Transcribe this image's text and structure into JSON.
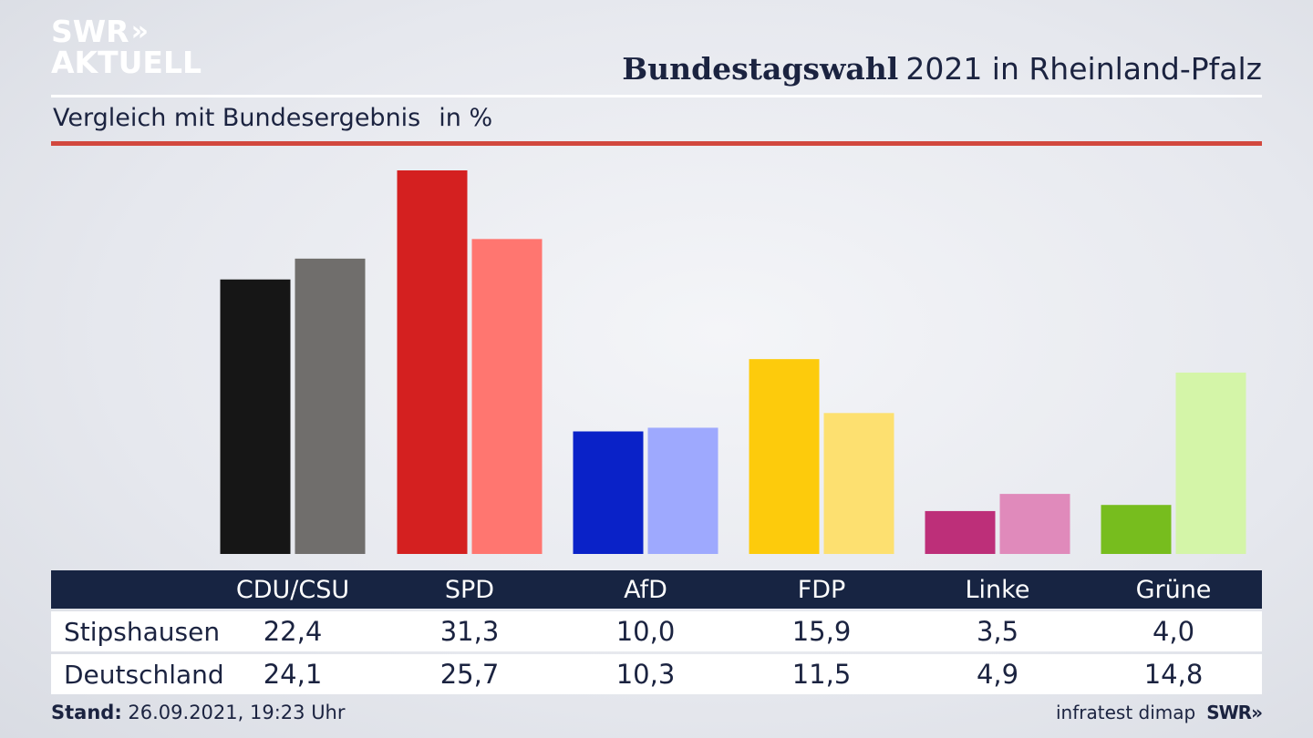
{
  "logo": {
    "line1": "SWR",
    "chevrons": "»",
    "line2": "AKTUELL"
  },
  "header": {
    "title_bold": "Bundestagswahl",
    "title_rest": "2021 in Rheinland-Pfalz"
  },
  "subtitle": {
    "text": "Vergleich mit Bundesergebnis",
    "unit": "in %"
  },
  "chart_data": {
    "type": "bar",
    "categories": [
      "CDU/CSU",
      "SPD",
      "AfD",
      "FDP",
      "Linke",
      "Grüne"
    ],
    "series": [
      {
        "name": "Stipshausen",
        "values": [
          22.4,
          31.3,
          10.0,
          15.9,
          3.5,
          4.0
        ],
        "colors": [
          "#161616",
          "#d42020",
          "#0a22c8",
          "#fdcb0c",
          "#bd2f79",
          "#77bd1e"
        ]
      },
      {
        "name": "Deutschland",
        "values": [
          24.1,
          25.7,
          10.3,
          11.5,
          4.9,
          14.8
        ],
        "colors": [
          "#706e6c",
          "#ff7670",
          "#9ea9fe",
          "#fde070",
          "#e08abb",
          "#d4f5a8"
        ]
      }
    ],
    "ylim": [
      0,
      32.5
    ],
    "grid": false
  },
  "table": {
    "headers": [
      "CDU/CSU",
      "SPD",
      "AfD",
      "FDP",
      "Linke",
      "Grüne"
    ],
    "rows": [
      {
        "label": "Stipshausen",
        "values": [
          "22,4",
          "31,3",
          "10,0",
          "15,9",
          "3,5",
          "4,0"
        ]
      },
      {
        "label": "Deutschland",
        "values": [
          "24,1",
          "25,7",
          "10,3",
          "11,5",
          "4,9",
          "14,8"
        ]
      }
    ]
  },
  "footer": {
    "stand_label": "Stand:",
    "stand_value": "26.09.2021, 19:23 Uhr",
    "source": "infratest dimap",
    "brand": "SWR»"
  }
}
